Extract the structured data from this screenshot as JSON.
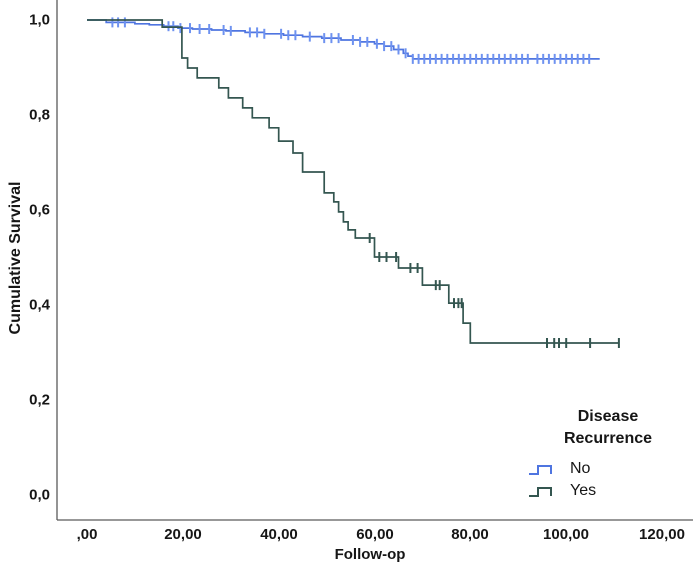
{
  "figure": {
    "y_axis": {
      "title": "Cumulative Survival",
      "ticks": [
        "1,0",
        "0,8",
        "0,6",
        "0,4",
        "0,2",
        "0,0"
      ]
    },
    "x_axis": {
      "title": "Follow-op",
      "ticks": [
        ",00",
        "20,00",
        "40,00",
        "60,00",
        "80,00",
        "100,00",
        "120,00"
      ]
    },
    "legend": {
      "title_line1": "Disease",
      "title_line2": "Recurrence",
      "items": [
        {
          "label": "No",
          "color": "#4f75e0"
        },
        {
          "label": "Yes",
          "color": "#345650"
        }
      ]
    }
  },
  "chart_data": {
    "type": "line",
    "subtype": "kaplan-meier-step-survival",
    "title": "",
    "xlabel": "Follow-op",
    "ylabel": "Cumulative Survival",
    "xlim": [
      0,
      120
    ],
    "ylim": [
      0.0,
      1.0
    ],
    "x_tick_values": [
      0,
      20,
      40,
      60,
      80,
      100,
      120
    ],
    "y_tick_values": [
      1.0,
      0.8,
      0.6,
      0.4,
      0.2,
      0.0
    ],
    "grid": false,
    "legend_position": "lower-right",
    "legend_title": "Disease Recurrence",
    "series": [
      {
        "name": "No",
        "color": "#4f75e0",
        "censor_color": "#6e92f0",
        "steps": [
          [
            0,
            1.0
          ],
          [
            4,
            0.995
          ],
          [
            10,
            0.992
          ],
          [
            13,
            0.99
          ],
          [
            16,
            0.987
          ],
          [
            19,
            0.983
          ],
          [
            22,
            0.981
          ],
          [
            26,
            0.979
          ],
          [
            29,
            0.977
          ],
          [
            33,
            0.974
          ],
          [
            37,
            0.971
          ],
          [
            41,
            0.968
          ],
          [
            45,
            0.965
          ],
          [
            49,
            0.962
          ],
          [
            53,
            0.958
          ],
          [
            57,
            0.954
          ],
          [
            60,
            0.95
          ],
          [
            62,
            0.945
          ],
          [
            64,
            0.938
          ],
          [
            66,
            0.93
          ],
          [
            67,
            0.924
          ],
          [
            68,
            0.918
          ]
        ],
        "end_x": 107,
        "censor_x": [
          5.3,
          6.5,
          7.9,
          17,
          18,
          19.5,
          21.5,
          23.5,
          25.5,
          28.5,
          30,
          34,
          35.5,
          37,
          40.5,
          42,
          43.5,
          46.5,
          49.5,
          51,
          52.5,
          55.5,
          57,
          58.5,
          60.5,
          62,
          63.5,
          65,
          66.5,
          68,
          69.2,
          70.4,
          71.6,
          72.8,
          74,
          75.2,
          76.4,
          77.6,
          78.8,
          80,
          81.2,
          82.4,
          83.6,
          84.8,
          86,
          87.2,
          88.4,
          89.6,
          90.8,
          92,
          94,
          95.2,
          96.4,
          97.6,
          98.8,
          100,
          101.2,
          102.4,
          103.6,
          104.8
        ]
      },
      {
        "name": "Yes",
        "color": "#345650",
        "censor_color": "#345650",
        "steps": [
          [
            0,
            1.0
          ],
          [
            15.7,
            0.985
          ],
          [
            19.8,
            0.92
          ],
          [
            21,
            0.899
          ],
          [
            23,
            0.878
          ],
          [
            27.5,
            0.857
          ],
          [
            29.5,
            0.836
          ],
          [
            32.5,
            0.815
          ],
          [
            34.5,
            0.794
          ],
          [
            38,
            0.773
          ],
          [
            40,
            0.745
          ],
          [
            43,
            0.72
          ],
          [
            45,
            0.68
          ],
          [
            49.5,
            0.636
          ],
          [
            51.5,
            0.617
          ],
          [
            52.5,
            0.596
          ],
          [
            53.5,
            0.575
          ],
          [
            54.5,
            0.558
          ],
          [
            56,
            0.541
          ],
          [
            60,
            0.501
          ],
          [
            65,
            0.478
          ],
          [
            70,
            0.442
          ],
          [
            75.5,
            0.404
          ],
          [
            78.5,
            0.362
          ],
          [
            80,
            0.32
          ]
        ],
        "end_x": 111,
        "censor_x": [
          59,
          61,
          62.5,
          64.5,
          67.5,
          69,
          72.8,
          73.6,
          76.6,
          77.5,
          78.2,
          96,
          97.5,
          98.5,
          100,
          105,
          111
        ]
      }
    ]
  }
}
